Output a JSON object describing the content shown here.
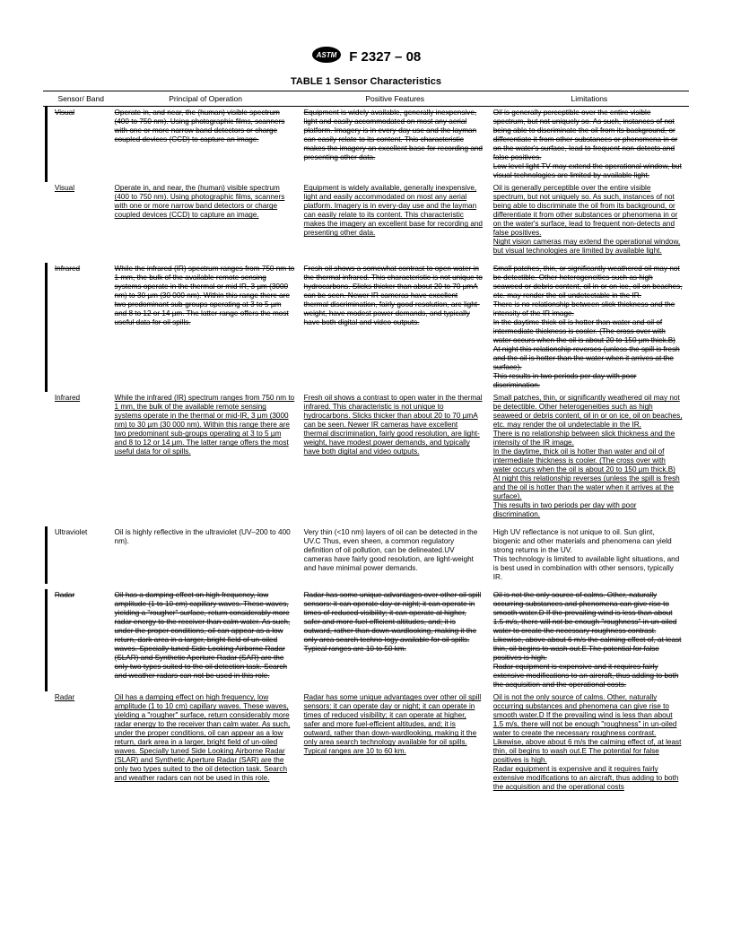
{
  "header": {
    "designation": "F 2327 – 08"
  },
  "table": {
    "title": "TABLE 1  Sensor Characteristics",
    "columns": [
      "Sensor/ Band",
      "Principal of Operation",
      "Positive Features",
      "Limitations"
    ],
    "rows": [
      {
        "marker": true,
        "struck": true,
        "sensor": "Visual",
        "principal": "Operate in, and near, the (human) visible spectrum (400 to 750 nm). Using photographic films, scanners with one or more narrow band detectors or charge coupled devices (CCD) to capture an image.",
        "positive": "Equipment is widely available, generally inexpensive, light and easily accommodated on most any aerial platform. Imagery is in every-day use and the layman can easily relate to its content. This characteristic makes the imagery an excellent base for recording and presenting other data.",
        "limit": "Oil is generally perceptible over the entire visible spectrum, but not uniquely so. As such, instances of not being able to discriminate the oil from its background, or differentiate it from other substances or phenomena in or on the water's surface, lead to frequent non-detects and false positives.\nLow level light TV may extend the operational window, but visual technologies are limited by available light."
      },
      {
        "marker": false,
        "uline": true,
        "sensor": "Visual",
        "principal": "Operate in, and near, the (human) visible spectrum (400 to 750 nm). Using photographic films, scanners with one or more narrow band detectors or charge coupled devices (CCD) to capture an image.",
        "positive": "Equipment is widely available, generally inexpensive, light and easily accommodated on most any aerial platform. Imagery is in every-day use and the layman can easily relate to its content. This characteristic makes the imagery an excellent base for recording and presenting other data.",
        "limit": "Oil is generally perceptible over the entire visible spectrum, but not uniquely so. As such, instances of not being able to discriminate the oil from its background, or differentiate it from other substances or phenomena in or on the water's surface, lead to frequent non-detects and false positives.\nNight vision cameras may extend the operational window, but visual technologies are limited by available light."
      },
      {
        "marker": true,
        "struck": true,
        "sensor": "Infrared",
        "principal": "While the infrared (IR) spectrum ranges from 750 nm to 1 mm, the bulk of the available remote sensing systems operate in the thermal or mid IR, 3 µm (3000 nm) to 30 µm (30 000 nm). Within this range there are two predominant sub-groups operating at 3 to 5 µm and 8 to 12 or 14 µm. The latter range offers the most useful data for oil spills.",
        "positive": "Fresh oil shows a somewhat contrast to open water in the thermal infrared. This characteristic is not unique to hydrocarbons. Slicks thicker than about 20 to 70 µmA can be seen. Newer IR cameras have excellent thermal discrimination, fairly good resolution, are light-weight, have modest power demands, and typically have both digital and video outputs.",
        "limit": "Small patches, thin, or significantly weathered oil may not be detectible. Other heterogeneities such as high seaweed or debris content, oil in or on ice, oil on beaches, etc. may render the oil undetectable in the IR.\nThere is no relationship between slick thickness and the intensity of the IR image.\nIn the daytime thick oil is hotter than water and oil of intermediate thickness is cooler. (The cross over with water occurs when the oil is about 20 to 150 µm thick.B) At night this relationship reverses (unless the spill is fresh and the oil is hotter than the water when it arrives at the surface).\nThis results in two periods per day with poor discrimination."
      },
      {
        "marker": false,
        "uline": true,
        "sensor": "Infrared",
        "principal": "While the infrared (IR) spectrum ranges from 750 nm to 1 mm, the bulk of the available remote sensing systems operate in the thermal or mid-IR, 3 µm (3000 nm) to 30 µm (30 000 nm). Within this range there are two predominant sub-groups operating at 3 to 5 µm and 8 to 12 or 14 µm. The latter range offers the most useful data for oil spills.",
        "positive": "Fresh oil shows a contrast to open water in the thermal infrared. This characteristic is not unique to hydrocarbons. Slicks thicker than about 20 to 70 µmA can be seen. Newer IR cameras have excellent thermal discrimination, fairly good resolution, are light-weight, have modest power demands, and typically have both digital and video outputs.",
        "limit": "Small patches, thin, or significantly weathered oil may not be detectible. Other heterogeneities such as high seaweed or debris content, oil in or on ice, oil on beaches, etc. may render the oil undetectable in the IR.\nThere is no relationship between slick thickness and the intensity of the IR image.\nIn the daytime, thick oil is hotter than water and oil of intermediate thickness is cooler. (The cross over with water occurs when the oil is about 20 to 150 µm thick.B) At night this relationship reverses (unless the spill is fresh and the oil is hotter than the water when it arrives at the surface).\nThis results in two periods per day with poor discrimination."
      },
      {
        "marker": true,
        "plain": true,
        "sensor": "Ultraviolet",
        "principal": "Oil is highly reflective in the ultraviolet (UV–200 to 400 nm).",
        "positive": "Very thin (<10 nm) layers of oil can be detected in the UV.C Thus, even sheen, a common regulatory definition of oil pollution, can be delineated.UV cameras have fairly good resolution, are light-weight and have minimal power demands.",
        "limit": "High UV reflectance is not unique to oil. Sun glint, biogenic and other materials and phenomena can yield strong returns in the UV.\nThis technology is limited to available light situations, and is best used in combination with other sensors, typically IR."
      },
      {
        "marker": true,
        "struck": true,
        "sensor": "Radar",
        "principal": "Oil has a damping effect on high frequency, low amplitude (1 to 10 cm) capillary waves. These waves, yielding a \"rougher\" surface, return considerably more radar energy to the receiver than calm water. As such, under the proper conditions, oil can appear as a low return, dark area in a larger, bright field of un-oiled waves. Specially tuned Side Looking Airborne Radar (SLAR) and Synthetic Aperture Radar (SAR) are the only two types suited to the oil detection task. Search and weather radars can not be used in this role.",
        "positive": "Radar has some unique advantages over other oil spill sensors: it can operate day or night; it can operate in times of reduced visibility; it can operate at higher, safer and more fuel-efficient altitudes, and; it is outward, rather than down-wardlooking, making it the only area search techno-logy available for oil spills. Typical ranges are 10 to 50 km.",
        "limit": "Oil is not the only source of calms. Other, naturally occurring substances and phenomena can give rise to smooth water.D If the prevailing wind is less than about 1.5 m/s, there will not be enough \"roughness\" in un-oiled water to create the necessary roughness contrast. Likewise, above about 6 m/s the calming effect of, at least thin, oil begins to wash out.E The potential for false positives is high.\nRadar equipment is expensive and it requires fairly extensive modifications to an aircraft, thus adding to both the acquisition and the operational costs."
      },
      {
        "marker": false,
        "uline": true,
        "sensor": "Radar",
        "principal": "Oil has a damping effect on high frequency, low amplitude (1 to 10 cm) capillary waves. These waves, yielding a \"rougher\" surface, return considerably more radar energy to the receiver than calm water. As such, under the proper conditions, oil can appear as a low return, dark area in a larger, bright field of un-oiled waves. Specially tuned Side Looking Airborne Radar (SLAR) and Synthetic Aperture Radar (SAR) are the only two types suited to the oil detection task. Search and weather radars can not be used in this role.",
        "positive": "Radar has some unique advantages over other oil spill sensors: it can operate day or night; it can operate in times of reduced visibility; it can operate at higher, safer and more fuel-efficient altitudes, and; it is outward, rather than down-wardlooking, making it the only area search technology available for oil spills. Typical ranges are 10 to 60 km.",
        "limit": "Oil is not the only source of calms. Other, naturally occurring substances and phenomena can give rise to smooth water.D If the prevailing wind is less than about 1.5 m/s, there will not be enough \"roughness\" in un-oiled water to create the necessary roughness contrast. Likewise, above about 6 m/s the calming effect of, at least thin, oil begins to wash out.E The potential for false positives is high.\nRadar equipment is expensive and it requires fairly extensive modifications to an aircraft, thus adding to both the acquisition and the operational costs"
      }
    ]
  }
}
